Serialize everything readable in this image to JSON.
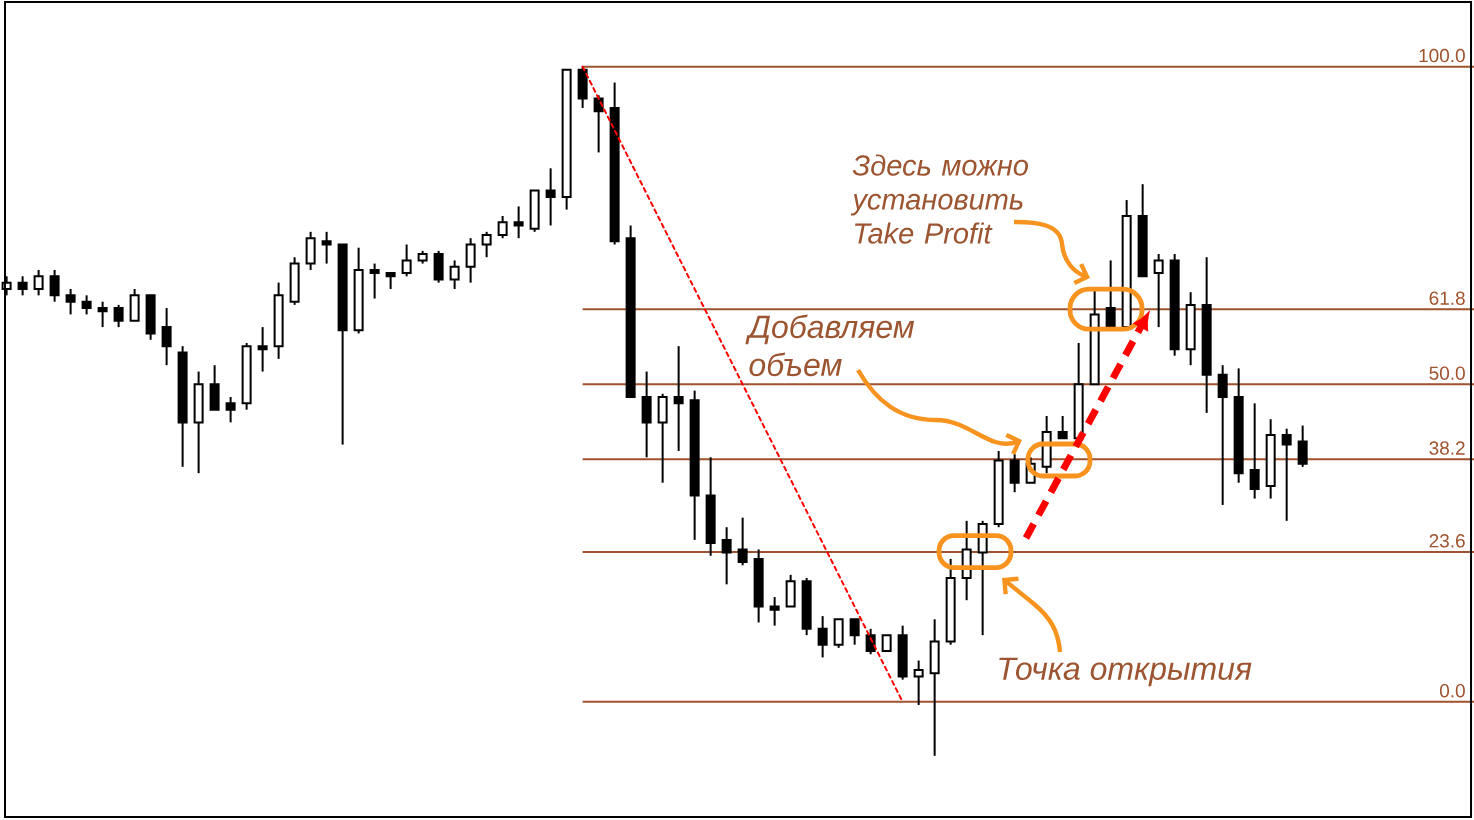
{
  "chart_data": {
    "type": "candlestick",
    "categories": [
      null,
      null,
      null,
      null,
      null,
      null,
      null,
      null,
      null,
      null,
      null,
      null,
      null,
      null,
      null,
      null,
      null,
      null,
      null,
      null,
      null,
      null,
      null,
      null,
      null,
      null,
      null,
      null,
      null,
      null,
      null,
      null,
      null,
      null,
      null,
      null,
      null,
      null,
      null,
      null,
      null,
      null,
      null,
      null,
      null,
      null,
      null,
      null,
      null,
      null,
      null,
      null,
      null,
      null,
      null,
      null,
      null,
      null,
      null,
      null,
      null,
      null,
      null,
      null,
      null,
      null,
      null,
      null,
      null,
      null,
      null,
      null,
      null,
      null,
      null,
      null,
      null,
      null,
      null,
      null,
      null,
      null
    ],
    "ohlc": [
      [
        65,
        67,
        64,
        66
      ],
      [
        66,
        67,
        64,
        65
      ],
      [
        65,
        68,
        64,
        67
      ],
      [
        67,
        68,
        63,
        64
      ],
      [
        64,
        65,
        61,
        63
      ],
      [
        63,
        64,
        61,
        62
      ],
      [
        62,
        63,
        59,
        61.5
      ],
      [
        62,
        62.5,
        59,
        60
      ],
      [
        60,
        65,
        60,
        64
      ],
      [
        64,
        64,
        57,
        58
      ],
      [
        59,
        62,
        53,
        56
      ],
      [
        55,
        56,
        37,
        44
      ],
      [
        44,
        52,
        36,
        50
      ],
      [
        50,
        53,
        46,
        46
      ],
      [
        47,
        48,
        44,
        46
      ],
      [
        47,
        56.5,
        46,
        56
      ],
      [
        56,
        59,
        52,
        55.5
      ],
      [
        56,
        66,
        54,
        64
      ],
      [
        63,
        70,
        62.5,
        69
      ],
      [
        69,
        74,
        68,
        73
      ],
      [
        72.5,
        74,
        69,
        72
      ],
      [
        72,
        72,
        40.5,
        58.5
      ],
      [
        58.5,
        71.5,
        58,
        68
      ],
      [
        68,
        69,
        63.5,
        67.5
      ],
      [
        67.5,
        67.5,
        65,
        67
      ],
      [
        67.5,
        72,
        67,
        69.5
      ],
      [
        69.5,
        71,
        69,
        70.5
      ],
      [
        70.5,
        71,
        66,
        66.5
      ],
      [
        66.5,
        69.5,
        65,
        68.5
      ],
      [
        68.5,
        73,
        66,
        72
      ],
      [
        72,
        74,
        70,
        73.5
      ],
      [
        73.5,
        76.5,
        73,
        75.5
      ],
      [
        75.5,
        78,
        73,
        75
      ],
      [
        74.5,
        80.5,
        74,
        80.5
      ],
      [
        80.5,
        84,
        75,
        79.5
      ],
      [
        79.5,
        99.5,
        77.5,
        99.5
      ],
      [
        99.5,
        100,
        93.5,
        95
      ],
      [
        95,
        95.5,
        86.5,
        93
      ],
      [
        93.5,
        97.5,
        72,
        72.5
      ],
      [
        73,
        75,
        48,
        48
      ],
      [
        48,
        52,
        38.5,
        44
      ],
      [
        44,
        48.5,
        34.5,
        48
      ],
      [
        48,
        56,
        39.5,
        47
      ],
      [
        47.5,
        49,
        25.5,
        32.5
      ],
      [
        32.5,
        38.5,
        23,
        25
      ],
      [
        25.5,
        27.5,
        18.5,
        23.5
      ],
      [
        24,
        29,
        21.5,
        22
      ],
      [
        22.5,
        24,
        12.5,
        15
      ],
      [
        15,
        16.5,
        12,
        14.5
      ],
      [
        15,
        20,
        15,
        19
      ],
      [
        19,
        19.5,
        10.5,
        11.5
      ],
      [
        11.5,
        13.5,
        7,
        9
      ],
      [
        9,
        13,
        8.5,
        13
      ],
      [
        13,
        13,
        9,
        10.5
      ],
      [
        10.5,
        11.5,
        7.5,
        8
      ],
      [
        8,
        10.5,
        8,
        10.5
      ],
      [
        10.5,
        12,
        3.5,
        4
      ],
      [
        4,
        6.5,
        -0.5,
        5
      ],
      [
        4.5,
        13,
        -8.5,
        9.5
      ],
      [
        9.5,
        22.5,
        9,
        19.5
      ],
      [
        19.5,
        28.5,
        16,
        24
      ],
      [
        23.5,
        28.5,
        10.5,
        28
      ],
      [
        28,
        39.5,
        27.5,
        38
      ],
      [
        38,
        39,
        33,
        34.5
      ],
      [
        34.5,
        38.5,
        34.5,
        37.5
      ],
      [
        37,
        45,
        36,
        42.5
      ],
      [
        42.5,
        45,
        41.5,
        41.5
      ],
      [
        41.5,
        56.5,
        41.5,
        50
      ],
      [
        50,
        65,
        50,
        61
      ],
      [
        62,
        69.5,
        59,
        59
      ],
      [
        59,
        79,
        59,
        76.5
      ],
      [
        76.5,
        81.5,
        67,
        67
      ],
      [
        67.5,
        70.5,
        59,
        69.5
      ],
      [
        69.5,
        70.5,
        54.5,
        55.5
      ],
      [
        55.5,
        64.5,
        53,
        62.5
      ],
      [
        62.5,
        70,
        45.5,
        51.5
      ],
      [
        51.5,
        53,
        31,
        48
      ],
      [
        48,
        52.5,
        34.5,
        36
      ],
      [
        36.5,
        47,
        32,
        33.5
      ],
      [
        34,
        44.5,
        32,
        42
      ],
      [
        42,
        43,
        28.5,
        40.5
      ],
      [
        41,
        43.5,
        37,
        37.5
      ]
    ],
    "ylim": [
      -18.6,
      110.5
    ],
    "series": [
      {
        "type": "line",
        "color": "#ff0000",
        "line_style": "dotted",
        "values": [
          null,
          null,
          null,
          null,
          null,
          null,
          null,
          null,
          null,
          null,
          null,
          null,
          null,
          null,
          null,
          null,
          null,
          null,
          null,
          null,
          null,
          null,
          null,
          null,
          null,
          null,
          null,
          null,
          null,
          null,
          null,
          null,
          null,
          null,
          null,
          null,
          100,
          95,
          90,
          85,
          80,
          75,
          70,
          65,
          60,
          55,
          50,
          45,
          40,
          35,
          30,
          25,
          20,
          15,
          10,
          5,
          0,
          null,
          null,
          null,
          null,
          null,
          null,
          null,
          null,
          null,
          null,
          null,
          null,
          null,
          null,
          null,
          null,
          null,
          null,
          null,
          null,
          null,
          null,
          null,
          null,
          null
        ]
      }
    ],
    "ref_lines": [
      {
        "axis": "y",
        "value": 100,
        "label": "100.0",
        "color": "#a0522d"
      },
      {
        "axis": "y",
        "value": 61.8,
        "label": "61.8",
        "color": "#a0522d"
      },
      {
        "axis": "y",
        "value": 50,
        "label": "50.0",
        "color": "#a0522d"
      },
      {
        "axis": "y",
        "value": 38.2,
        "label": "38.2",
        "color": "#a0522d"
      },
      {
        "axis": "y",
        "value": 23.6,
        "label": "23.6",
        "color": "#a0522d"
      },
      {
        "axis": "y",
        "value": 0,
        "label": "0.0",
        "color": "#a0522d"
      }
    ],
    "annotations": [
      "Здесь можно установить Take Profit",
      "Добавляем объем",
      "Точка открытия"
    ]
  }
}
